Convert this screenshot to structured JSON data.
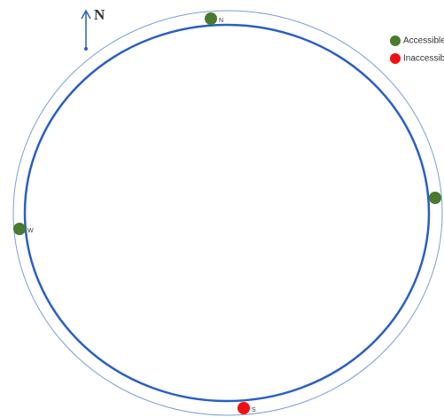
{
  "compass": {
    "label": "N"
  },
  "gates": [
    {
      "label": "N",
      "color": "#4a7a2e"
    },
    {
      "color": "#4a7a2e"
    },
    {
      "label": "W",
      "color": "#4a7a2e"
    },
    {
      "label": "S",
      "color": "#ee1111"
    }
  ],
  "legend": [
    {
      "label": "Accessible",
      "color": "#4a7a2e"
    },
    {
      "label": "Inaccessible",
      "color": "#ee1111"
    }
  ]
}
